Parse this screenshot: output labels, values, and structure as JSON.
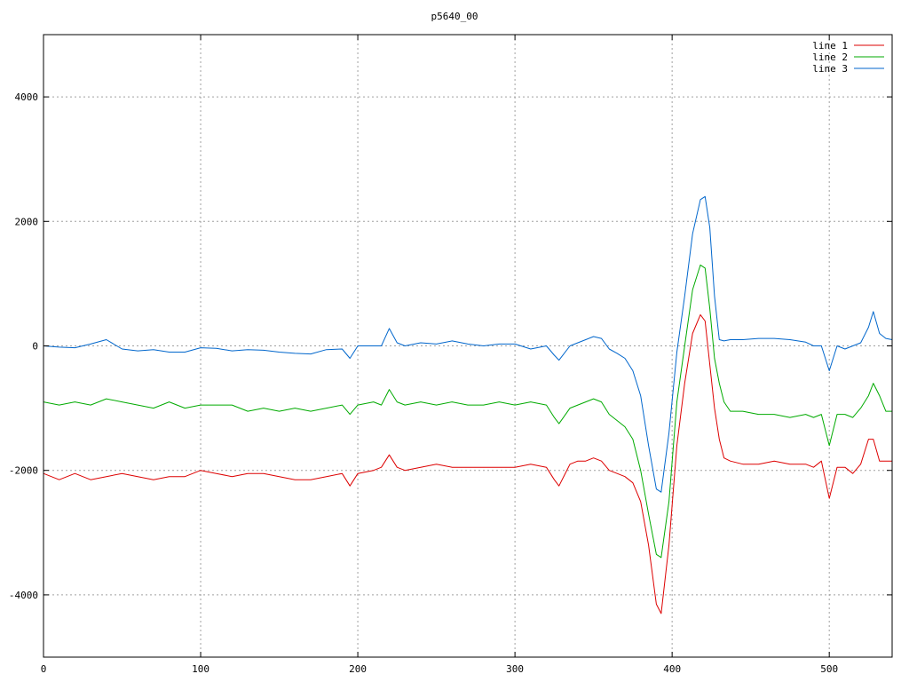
{
  "chart_data": {
    "type": "line",
    "title": "p5640_00",
    "xlabel": "",
    "ylabel": "",
    "xlim": [
      0,
      540
    ],
    "ylim": [
      -5000,
      5000
    ],
    "grid": true,
    "legend_position": "top-right",
    "x_ticks": [
      "0",
      "100",
      "200",
      "300",
      "400",
      "500"
    ],
    "y_ticks": [
      "-4000",
      "-2000",
      "0",
      "2000",
      "4000"
    ],
    "x": [
      0,
      10,
      20,
      30,
      40,
      50,
      60,
      70,
      80,
      90,
      100,
      110,
      120,
      130,
      140,
      150,
      160,
      170,
      180,
      190,
      195,
      200,
      210,
      215,
      220,
      225,
      230,
      240,
      250,
      260,
      270,
      280,
      290,
      300,
      310,
      320,
      325,
      328,
      335,
      340,
      345,
      350,
      355,
      360,
      365,
      370,
      375,
      380,
      385,
      390,
      393,
      398,
      403,
      408,
      413,
      418,
      421,
      424,
      427,
      430,
      433,
      437,
      445,
      455,
      465,
      475,
      485,
      490,
      495,
      500,
      505,
      510,
      515,
      520,
      525,
      528,
      532,
      536,
      540
    ],
    "series": [
      {
        "name": "line 1",
        "color": "#dd0000",
        "values": [
          -2050,
          -2150,
          -2050,
          -2150,
          -2100,
          -2050,
          -2100,
          -2150,
          -2100,
          -2100,
          -2000,
          -2050,
          -2100,
          -2050,
          -2050,
          -2100,
          -2150,
          -2150,
          -2100,
          -2050,
          -2250,
          -2050,
          -2000,
          -1950,
          -1750,
          -1950,
          -2000,
          -1950,
          -1900,
          -1950,
          -1950,
          -1950,
          -1950,
          -1950,
          -1900,
          -1950,
          -2150,
          -2250,
          -1900,
          -1850,
          -1850,
          -1800,
          -1850,
          -2000,
          -2050,
          -2100,
          -2200,
          -2500,
          -3200,
          -4150,
          -4300,
          -3200,
          -1600,
          -600,
          200,
          500,
          400,
          -300,
          -1000,
          -1500,
          -1800,
          -1850,
          -1900,
          -1900,
          -1850,
          -1900,
          -1900,
          -1950,
          -1850,
          -2450,
          -1950,
          -1950,
          -2050,
          -1900,
          -1500,
          -1500,
          -1850,
          -1850,
          -1850
        ]
      },
      {
        "name": "line 2",
        "color": "#00aa00",
        "values": [
          -900,
          -950,
          -900,
          -950,
          -850,
          -900,
          -950,
          -1000,
          -900,
          -1000,
          -950,
          -950,
          -950,
          -1050,
          -1000,
          -1050,
          -1000,
          -1050,
          -1000,
          -950,
          -1100,
          -950,
          -900,
          -950,
          -700,
          -900,
          -950,
          -900,
          -950,
          -900,
          -950,
          -950,
          -900,
          -950,
          -900,
          -950,
          -1150,
          -1250,
          -1000,
          -950,
          -900,
          -850,
          -900,
          -1100,
          -1200,
          -1300,
          -1500,
          -2000,
          -2700,
          -3350,
          -3400,
          -2500,
          -900,
          0,
          900,
          1300,
          1250,
          600,
          -200,
          -600,
          -900,
          -1050,
          -1050,
          -1100,
          -1100,
          -1150,
          -1100,
          -1150,
          -1100,
          -1600,
          -1100,
          -1100,
          -1150,
          -1000,
          -800,
          -600,
          -800,
          -1050,
          -1050
        ]
      },
      {
        "name": "line 3",
        "color": "#0066cc",
        "values": [
          0,
          -20,
          -30,
          30,
          100,
          -50,
          -80,
          -60,
          -100,
          -100,
          -30,
          -40,
          -80,
          -60,
          -70,
          -100,
          -120,
          -130,
          -60,
          -50,
          -200,
          0,
          0,
          0,
          280,
          50,
          0,
          50,
          30,
          80,
          30,
          0,
          30,
          30,
          -50,
          0,
          -150,
          -230,
          0,
          50,
          100,
          150,
          120,
          -50,
          -120,
          -200,
          -400,
          -800,
          -1600,
          -2300,
          -2350,
          -1400,
          -100,
          800,
          1800,
          2350,
          2400,
          1900,
          800,
          100,
          80,
          100,
          100,
          120,
          120,
          100,
          60,
          0,
          0,
          -400,
          0,
          -50,
          0,
          50,
          300,
          550,
          200,
          120,
          100
        ]
      }
    ]
  }
}
